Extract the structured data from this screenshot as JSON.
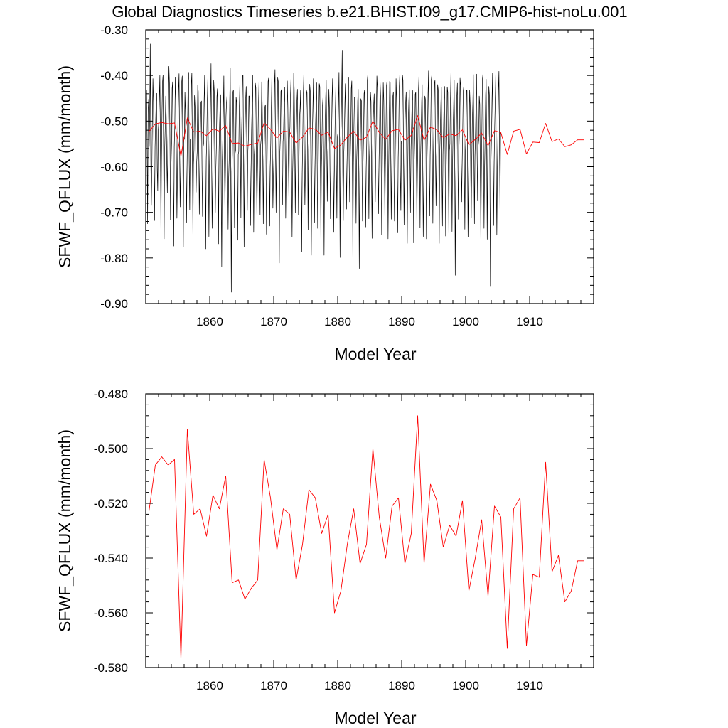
{
  "title": "Global Diagnostics Timeseries b.e21.BHIST.f09_g17.CMIP6-hist-noLu.001",
  "colors": {
    "monthly": "#000000",
    "annual": "#ff0000",
    "frame": "#000000",
    "background": "#ffffff"
  },
  "chart_data": [
    {
      "type": "line",
      "panel": "top",
      "xlabel": "Model Year",
      "ylabel": "SFWF_QFLUX (mm/month)",
      "xlim": [
        1850,
        1920
      ],
      "ylim": [
        -0.9,
        -0.3
      ],
      "xticks": [
        1860,
        1870,
        1880,
        1890,
        1900,
        1910
      ],
      "xtick_labels": [
        "1860",
        "1870",
        "1880",
        "1890",
        "1900",
        "1910"
      ],
      "yticks": [
        -0.9,
        -0.8,
        -0.7,
        -0.6,
        -0.5,
        -0.4,
        -0.3
      ],
      "ytick_labels": [
        "-0.90",
        "-0.80",
        "-0.70",
        "-0.60",
        "-0.50",
        "-0.40",
        "-0.30"
      ],
      "grid": false,
      "legend": "none",
      "series": [
        {
          "color": "#000000",
          "x_start": 1850.04,
          "x_step": 0.08333,
          "values": [
            -0.505,
            -0.432,
            -0.545,
            -0.725,
            -0.476,
            -0.452,
            -0.556,
            -0.482,
            -0.331,
            -0.586,
            -0.685,
            -0.604,
            -0.488,
            -0.407,
            -0.459,
            -0.592,
            -0.718,
            -0.556,
            -0.505,
            -0.458,
            -0.439,
            -0.604,
            -0.652,
            -0.52,
            -0.501,
            -0.45,
            -0.4,
            -0.555,
            -0.74,
            -0.588,
            -0.48,
            -0.414,
            -0.399,
            -0.578,
            -0.758,
            -0.56,
            -0.515,
            -0.445,
            -0.493,
            -0.59,
            -0.657,
            -0.545,
            -0.491,
            -0.38,
            -0.418,
            -0.556,
            -0.717,
            -0.593,
            -0.548,
            -0.428,
            -0.414,
            -0.614,
            -0.774,
            -0.556,
            -0.512,
            -0.404,
            -0.456,
            -0.578,
            -0.713,
            -0.613,
            -0.497,
            -0.433,
            -0.396,
            -0.554,
            -0.688,
            -0.611,
            -0.488,
            -0.414,
            -0.401,
            -0.567,
            -0.776,
            -0.534,
            -0.54,
            -0.437,
            -0.478,
            -0.59,
            -0.722,
            -0.6,
            -0.505,
            -0.409,
            -0.393,
            -0.586,
            -0.695,
            -0.541,
            -0.538,
            -0.419,
            -0.395,
            -0.587,
            -0.751,
            -0.594,
            -0.563,
            -0.444,
            -0.469,
            -0.541,
            -0.656,
            -0.591,
            -0.567,
            -0.421,
            -0.435,
            -0.556,
            -0.704,
            -0.608,
            -0.522,
            -0.46,
            -0.456,
            -0.598,
            -0.709,
            -0.557,
            -0.55,
            -0.457,
            -0.399,
            -0.57,
            -0.78,
            -0.582,
            -0.537,
            -0.455,
            -0.405,
            -0.573,
            -0.753,
            -0.601,
            -0.541,
            -0.451,
            -0.374,
            -0.565,
            -0.735,
            -0.638,
            -0.543,
            -0.411,
            -0.436,
            -0.585,
            -0.7,
            -0.604,
            -0.557,
            -0.447,
            -0.429,
            -0.554,
            -0.769,
            -0.571,
            -0.505,
            -0.462,
            -0.442,
            -0.634,
            -0.819,
            -0.59,
            -0.54,
            -0.474,
            -0.401,
            -0.574,
            -0.691,
            -0.607,
            -0.49,
            -0.46,
            -0.444,
            -0.581,
            -0.737,
            -0.626,
            -0.585,
            -0.452,
            -0.383,
            -0.616,
            -0.875,
            -0.611,
            -0.573,
            -0.436,
            -0.432,
            -0.57,
            -0.734,
            -0.571,
            -0.565,
            -0.448,
            -0.458,
            -0.605,
            -0.761,
            -0.572,
            -0.567,
            -0.47,
            -0.42,
            -0.548,
            -0.711,
            -0.542,
            -0.488,
            -0.401,
            -0.4,
            -0.593,
            -0.776,
            -0.596,
            -0.516,
            -0.45,
            -0.424,
            -0.552,
            -0.696,
            -0.567,
            -0.541,
            -0.445,
            -0.445,
            -0.58,
            -0.729,
            -0.615,
            -0.519,
            -0.465,
            -0.4,
            -0.575,
            -0.744,
            -0.575,
            -0.554,
            -0.417,
            -0.427,
            -0.598,
            -0.708,
            -0.614,
            -0.54,
            -0.461,
            -0.413,
            -0.608,
            -0.705,
            -0.553,
            -0.539,
            -0.414,
            -0.468,
            -0.575,
            -0.725,
            -0.585,
            -0.543,
            -0.469,
            -0.464,
            -0.581,
            -0.748,
            -0.603,
            -0.505,
            -0.413,
            -0.406,
            -0.573,
            -0.73,
            -0.601,
            -0.547,
            -0.474,
            -0.404,
            -0.56,
            -0.691,
            -0.623,
            -0.579,
            -0.419,
            -0.387,
            -0.567,
            -0.7,
            -0.562,
            -0.495,
            -0.405,
            -0.413,
            -0.542,
            -0.811,
            -0.569,
            -0.536,
            -0.435,
            -0.431,
            -0.609,
            -0.683,
            -0.546,
            -0.523,
            -0.462,
            -0.426,
            -0.554,
            -0.713,
            -0.606,
            -0.518,
            -0.412,
            -0.466,
            -0.582,
            -0.667,
            -0.539,
            -0.513,
            -0.444,
            -0.407,
            -0.603,
            -0.754,
            -0.617,
            -0.557,
            -0.395,
            -0.432,
            -0.559,
            -0.701,
            -0.561,
            -0.518,
            -0.457,
            -0.43,
            -0.574,
            -0.706,
            -0.585,
            -0.493,
            -0.472,
            -0.433,
            -0.595,
            -0.787,
            -0.612,
            -0.538,
            -0.442,
            -0.397,
            -0.577,
            -0.684,
            -0.599,
            -0.506,
            -0.433,
            -0.438,
            -0.531,
            -0.739,
            -0.561,
            -0.524,
            -0.419,
            -0.434,
            -0.571,
            -0.794,
            -0.632,
            -0.528,
            -0.47,
            -0.407,
            -0.565,
            -0.722,
            -0.603,
            -0.507,
            -0.462,
            -0.416,
            -0.583,
            -0.735,
            -0.601,
            -0.5,
            -0.418,
            -0.425,
            -0.589,
            -0.76,
            -0.601,
            -0.545,
            -0.466,
            -0.448,
            -0.557,
            -0.794,
            -0.611,
            -0.515,
            -0.448,
            -0.41,
            -0.546,
            -0.676,
            -0.568,
            -0.541,
            -0.43,
            -0.47,
            -0.599,
            -0.714,
            -0.557,
            -0.539,
            -0.448,
            -0.407,
            -0.545,
            -0.744,
            -0.637,
            -0.552,
            -0.482,
            -0.425,
            -0.593,
            -0.713,
            -0.534,
            -0.527,
            -0.46,
            -0.393,
            -0.583,
            -0.799,
            -0.543,
            -0.509,
            -0.432,
            -0.346,
            -0.612,
            -0.718,
            -0.57,
            -0.533,
            -0.46,
            -0.418,
            -0.571,
            -0.693,
            -0.596,
            -0.524,
            -0.413,
            -0.405,
            -0.583,
            -0.677,
            -0.583,
            -0.532,
            -0.429,
            -0.412,
            -0.583,
            -0.8,
            -0.597,
            -0.513,
            -0.447,
            -0.449,
            -0.577,
            -0.724,
            -0.59,
            -0.548,
            -0.456,
            -0.43,
            -0.589,
            -0.823,
            -0.614,
            -0.551,
            -0.451,
            -0.456,
            -0.578,
            -0.719,
            -0.593,
            -0.54,
            -0.44,
            -0.432,
            -0.588,
            -0.732,
            -0.602,
            -0.543,
            -0.411,
            -0.399,
            -0.58,
            -0.714,
            -0.582,
            -0.542,
            -0.437,
            -0.457,
            -0.618,
            -0.757,
            -0.57,
            -0.506,
            -0.466,
            -0.44,
            -0.542,
            -0.677,
            -0.578,
            -0.484,
            -0.401,
            -0.426,
            -0.594,
            -0.703,
            -0.594,
            -0.519,
            -0.412,
            -0.445,
            -0.567,
            -0.749,
            -0.626,
            -0.523,
            -0.416,
            -0.456,
            -0.584,
            -0.71,
            -0.596,
            -0.534,
            -0.423,
            -0.413,
            -0.545,
            -0.758,
            -0.614,
            -0.525,
            -0.413,
            -0.416,
            -0.568,
            -0.715,
            -0.602,
            -0.5,
            -0.446,
            -0.436,
            -0.59,
            -0.719,
            -0.613,
            -0.519,
            -0.407,
            -0.452,
            -0.615,
            -0.745,
            -0.58,
            -0.522,
            -0.426,
            -0.398,
            -0.611,
            -0.696,
            -0.544,
            -0.55,
            -0.399,
            -0.411,
            -0.577,
            -0.727,
            -0.599,
            -0.498,
            -0.46,
            -0.436,
            -0.59,
            -0.768,
            -0.596,
            -0.499,
            -0.455,
            -0.431,
            -0.579,
            -0.7,
            -0.564,
            -0.511,
            -0.457,
            -0.433,
            -0.574,
            -0.767,
            -0.589,
            -0.539,
            -0.441,
            -0.437,
            -0.568,
            -0.719,
            -0.615,
            -0.533,
            -0.433,
            -0.402,
            -0.558,
            -0.734,
            -0.578,
            -0.528,
            -0.458,
            -0.42,
            -0.593,
            -0.753,
            -0.635,
            -0.523,
            -0.445,
            -0.452,
            -0.557,
            -0.758,
            -0.587,
            -0.53,
            -0.44,
            -0.39,
            -0.618,
            -0.708,
            -0.573,
            -0.516,
            -0.41,
            -0.4,
            -0.574,
            -0.724,
            -0.58,
            -0.508,
            -0.416,
            -0.411,
            -0.584,
            -0.686,
            -0.579,
            -0.543,
            -0.42,
            -0.431,
            -0.562,
            -0.768,
            -0.566,
            -0.523,
            -0.464,
            -0.425,
            -0.605,
            -0.73,
            -0.573,
            -0.521,
            -0.457,
            -0.424,
            -0.565,
            -0.752,
            -0.604,
            -0.536,
            -0.425,
            -0.437,
            -0.595,
            -0.746,
            -0.565,
            -0.55,
            -0.456,
            -0.394,
            -0.551,
            -0.742,
            -0.592,
            -0.519,
            -0.467,
            -0.41,
            -0.576,
            -0.838,
            -0.631,
            -0.542,
            -0.446,
            -0.417,
            -0.592,
            -0.715,
            -0.557,
            -0.515,
            -0.406,
            -0.421,
            -0.583,
            -0.677,
            -0.592,
            -0.52,
            -0.434,
            -0.424,
            -0.59,
            -0.737,
            -0.567,
            -0.534,
            -0.432,
            -0.433,
            -0.57,
            -0.754,
            -0.629,
            -0.539,
            -0.432,
            -0.464,
            -0.613,
            -0.712,
            -0.589,
            -0.503,
            -0.459,
            -0.398,
            -0.57,
            -0.725,
            -0.576,
            -0.528,
            -0.46,
            -0.397,
            -0.563,
            -0.675,
            -0.554,
            -0.542,
            -0.445,
            -0.463,
            -0.607,
            -0.758,
            -0.618,
            -0.515,
            -0.408,
            -0.397,
            -0.549,
            -0.735,
            -0.605,
            -0.537,
            -0.442,
            -0.408,
            -0.555,
            -0.759,
            -0.563,
            -0.528,
            -0.424,
            -0.442,
            -0.614,
            -0.861,
            -0.588,
            -0.537,
            -0.454,
            -0.395,
            -0.572,
            -0.729,
            -0.588,
            -0.512,
            -0.457,
            -0.397,
            -0.611,
            -0.75,
            -0.606,
            -0.531,
            -0.432,
            -0.391,
            -0.551,
            -0.694,
            -0.528,
            -0.525
          ]
        },
        {
          "color": "#ff0000",
          "x_start": 1850.5,
          "x_step": 1,
          "values": [
            -0.523,
            -0.506,
            -0.503,
            -0.506,
            -0.504,
            -0.577,
            -0.493,
            -0.524,
            -0.522,
            -0.532,
            -0.517,
            -0.522,
            -0.51,
            -0.549,
            -0.548,
            -0.555,
            -0.551,
            -0.548,
            -0.504,
            -0.518,
            -0.537,
            -0.522,
            -0.524,
            -0.548,
            -0.535,
            -0.515,
            -0.518,
            -0.531,
            -0.524,
            -0.56,
            -0.552,
            -0.535,
            -0.522,
            -0.542,
            -0.535,
            -0.5,
            -0.525,
            -0.54,
            -0.521,
            -0.518,
            -0.542,
            -0.531,
            -0.488,
            -0.542,
            -0.513,
            -0.519,
            -0.536,
            -0.528,
            -0.532,
            -0.519,
            -0.552,
            -0.54,
            -0.526,
            -0.554,
            -0.521,
            -0.525,
            -0.573,
            -0.522,
            -0.518,
            -0.572,
            -0.546,
            -0.547,
            -0.505,
            -0.545,
            -0.539,
            -0.556,
            -0.552,
            -0.541,
            -0.541
          ]
        }
      ]
    },
    {
      "type": "line",
      "panel": "bottom",
      "xlabel": "Model Year",
      "ylabel": "SFWF_QFLUX (mm/month)",
      "xlim": [
        1850,
        1920
      ],
      "ylim": [
        -0.58,
        -0.48
      ],
      "xticks": [
        1860,
        1870,
        1880,
        1890,
        1900,
        1910
      ],
      "xtick_labels": [
        "1860",
        "1870",
        "1880",
        "1890",
        "1900",
        "1910"
      ],
      "yticks": [
        -0.58,
        -0.56,
        -0.54,
        -0.52,
        -0.5,
        -0.48
      ],
      "ytick_labels": [
        "-0.580",
        "-0.560",
        "-0.540",
        "-0.520",
        "-0.500",
        "-0.480"
      ],
      "grid": false,
      "legend": "none",
      "series": [
        {
          "color": "#ff0000",
          "x_start": 1850.5,
          "x_step": 1,
          "values": [
            -0.523,
            -0.506,
            -0.503,
            -0.506,
            -0.504,
            -0.577,
            -0.493,
            -0.524,
            -0.522,
            -0.532,
            -0.517,
            -0.522,
            -0.51,
            -0.549,
            -0.548,
            -0.555,
            -0.551,
            -0.548,
            -0.504,
            -0.518,
            -0.537,
            -0.522,
            -0.524,
            -0.548,
            -0.535,
            -0.515,
            -0.518,
            -0.531,
            -0.524,
            -0.56,
            -0.552,
            -0.535,
            -0.522,
            -0.542,
            -0.535,
            -0.5,
            -0.525,
            -0.54,
            -0.521,
            -0.518,
            -0.542,
            -0.531,
            -0.488,
            -0.542,
            -0.513,
            -0.519,
            -0.536,
            -0.528,
            -0.532,
            -0.519,
            -0.552,
            -0.54,
            -0.526,
            -0.554,
            -0.521,
            -0.525,
            -0.573,
            -0.522,
            -0.518,
            -0.572,
            -0.546,
            -0.547,
            -0.505,
            -0.545,
            -0.539,
            -0.556,
            -0.552,
            -0.541,
            -0.541
          ]
        }
      ]
    }
  ]
}
